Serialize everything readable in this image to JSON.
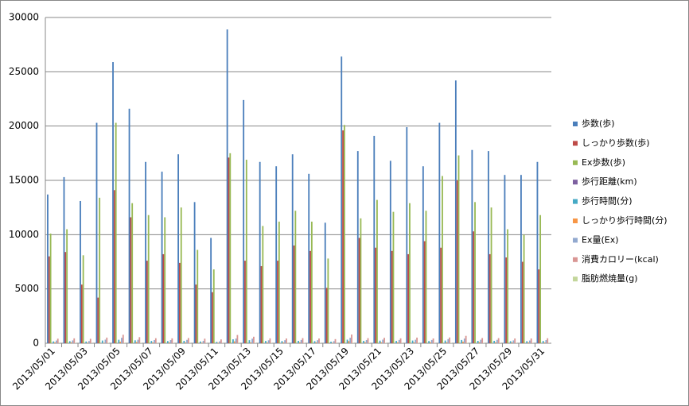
{
  "chart_data": {
    "type": "bar",
    "categories": [
      "2013/05/01",
      null,
      "2013/05/03",
      null,
      "2013/05/05",
      null,
      "2013/05/07",
      null,
      "2013/05/09",
      null,
      "2013/05/11",
      null,
      "2013/05/13",
      null,
      "2013/05/15",
      null,
      "2013/05/17",
      null,
      "2013/05/19",
      null,
      "2013/05/21",
      null,
      "2013/05/23",
      null,
      "2013/05/25",
      null,
      "2013/05/27",
      null,
      "2013/05/29",
      null,
      "2013/05/31"
    ],
    "ylim": [
      0,
      30000
    ],
    "yticks": [
      0,
      5000,
      10000,
      15000,
      20000,
      25000,
      30000
    ],
    "grid": true,
    "legend": "right",
    "series": [
      {
        "name": "歩数(歩)",
        "color": "#4a7ebb",
        "values": [
          13700,
          15300,
          13100,
          20300,
          25900,
          21600,
          16700,
          15800,
          17400,
          13000,
          9700,
          28900,
          22400,
          16700,
          16300,
          17400,
          15600,
          11100,
          26400,
          17700,
          19100,
          16800,
          19900,
          16300,
          20300,
          24200,
          17800,
          17700,
          15500,
          15500,
          16700
        ]
      },
      {
        "name": "しっかり歩数(歩)",
        "color": "#be4b48",
        "values": [
          8000,
          8400,
          5400,
          4200,
          14100,
          11600,
          7600,
          8200,
          7400,
          5400,
          4700,
          17100,
          7600,
          7100,
          7600,
          9000,
          8500,
          5100,
          19600,
          9700,
          8800,
          8500,
          8200,
          9400,
          8800,
          15000,
          10300,
          8200,
          7900,
          7500,
          6800
        ]
      },
      {
        "name": "Ex歩数(歩)",
        "color": "#98b954",
        "values": [
          10100,
          10500,
          8100,
          13400,
          20300,
          12900,
          11800,
          11600,
          12500,
          8600,
          6800,
          17500,
          16900,
          10800,
          11200,
          12200,
          11200,
          7800,
          20100,
          11500,
          13200,
          12100,
          12900,
          12200,
          15400,
          17300,
          13000,
          12500,
          10500,
          10000,
          11800
        ]
      },
      {
        "name": "歩行距離(km)",
        "color": "#7d60a0",
        "values": [
          9,
          10,
          9,
          13,
          17,
          14,
          11,
          10,
          11,
          9,
          6,
          19,
          15,
          11,
          11,
          11,
          10,
          7,
          17,
          12,
          12,
          11,
          13,
          11,
          13,
          16,
          12,
          12,
          10,
          10,
          11
        ]
      },
      {
        "name": "歩行時間(分)",
        "color": "#46aac5",
        "values": [
          170,
          190,
          160,
          250,
          320,
          270,
          210,
          200,
          220,
          160,
          120,
          360,
          280,
          210,
          200,
          220,
          190,
          140,
          330,
          220,
          240,
          210,
          250,
          200,
          250,
          300,
          220,
          220,
          190,
          190,
          210
        ]
      },
      {
        "name": "しっかり歩行時間(分)",
        "color": "#f79646",
        "values": [
          80,
          85,
          55,
          45,
          140,
          115,
          75,
          80,
          75,
          55,
          50,
          170,
          75,
          70,
          75,
          90,
          85,
          50,
          195,
          95,
          90,
          85,
          80,
          95,
          90,
          150,
          100,
          80,
          80,
          75,
          70
        ]
      },
      {
        "name": "Ex量(Ex)",
        "color": "#92a9cf",
        "values": [
          250,
          260,
          200,
          330,
          500,
          320,
          290,
          290,
          310,
          210,
          170,
          430,
          420,
          270,
          280,
          300,
          280,
          190,
          500,
          290,
          330,
          300,
          320,
          300,
          380,
          430,
          320,
          310,
          260,
          250,
          290
        ]
      },
      {
        "name": "消費カロリー(kcal)",
        "color": "#d99694",
        "values": [
          420,
          450,
          410,
          520,
          780,
          560,
          460,
          450,
          480,
          420,
          350,
          760,
          600,
          450,
          440,
          470,
          440,
          380,
          800,
          470,
          500,
          450,
          520,
          440,
          530,
          680,
          480,
          470,
          440,
          440,
          460
        ]
      },
      {
        "name": "脂肪燃焼量(g)",
        "color": "#c3d69b",
        "values": [
          25,
          27,
          22,
          35,
          45,
          38,
          29,
          28,
          30,
          22,
          17,
          50,
          39,
          29,
          28,
          30,
          27,
          19,
          46,
          31,
          33,
          29,
          34,
          28,
          35,
          42,
          31,
          31,
          27,
          27,
          29
        ]
      }
    ]
  }
}
